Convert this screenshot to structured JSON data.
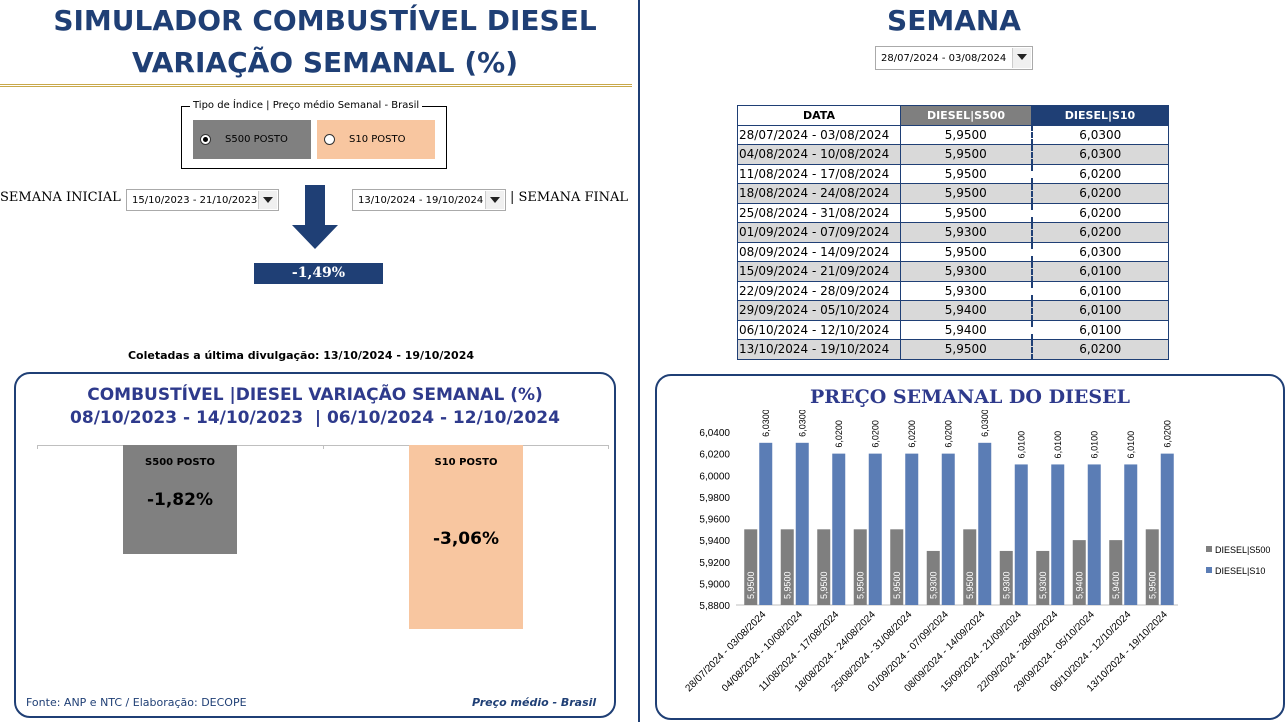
{
  "left": {
    "title_line1": "SIMULADOR COMBUSTÍVEL DIESEL",
    "title_line2": "VARIAÇÃO SEMANAL (%)",
    "index_group_label": "Tipo de Índice | Preço médio Semanal - Brasil",
    "option_s500": "S500 POSTO",
    "option_s10": "S10 POSTO",
    "selected_option": "S500 POSTO",
    "initial_week_label": "SEMANA INICIAL |",
    "initial_week_value": "15/10/2023 - 21/10/2023",
    "final_week_value": "13/10/2024 - 19/10/2024",
    "final_week_label": "| SEMANA FINAL",
    "result": "-1,49%",
    "collected_note": "Coletadas a última divulgação: 13/10/2024 - 19/10/2024",
    "card": {
      "title_line1": "COMBUSTÍVEL |DIESEL VARIAÇÃO SEMANAL (%)",
      "title_line2": "08/10/2023 - 14/10/2023  | 06/10/2024 - 12/10/2024",
      "bars": [
        {
          "name": "S500 POSTO",
          "label": "-1,82%",
          "value": -1.82,
          "color": "#808080"
        },
        {
          "name": "S10 POSTO",
          "label": "-3,06%",
          "value": -3.06,
          "color": "#f8c6a0"
        }
      ]
    },
    "footer_source": "Fonte: ANP e NTC  / Elaboração: DECOPE",
    "footer_note": "Preço médio - Brasil"
  },
  "right": {
    "title": "SEMANA",
    "week_select": "28/07/2024 - 03/08/2024",
    "table": {
      "headers": [
        "DATA",
        "DIESEL|S500",
        "DIESEL|S10"
      ],
      "rows": [
        [
          "28/07/2024 - 03/08/2024",
          "5,9500",
          "6,0300"
        ],
        [
          "04/08/2024 - 10/08/2024",
          "5,9500",
          "6,0300"
        ],
        [
          "11/08/2024 - 17/08/2024",
          "5,9500",
          "6,0200"
        ],
        [
          "18/08/2024 - 24/08/2024",
          "5,9500",
          "6,0200"
        ],
        [
          "25/08/2024 - 31/08/2024",
          "5,9500",
          "6,0200"
        ],
        [
          "01/09/2024 - 07/09/2024",
          "5,9300",
          "6,0200"
        ],
        [
          "08/09/2024 - 14/09/2024",
          "5,9500",
          "6,0300"
        ],
        [
          "15/09/2024 - 21/09/2024",
          "5,9300",
          "6,0100"
        ],
        [
          "22/09/2024 - 28/09/2024",
          "5,9300",
          "6,0100"
        ],
        [
          "29/09/2024 - 05/10/2024",
          "5,9400",
          "6,0100"
        ],
        [
          "06/10/2024 - 12/10/2024",
          "5,9400",
          "6,0100"
        ],
        [
          "13/10/2024 - 19/10/2024",
          "5,9500",
          "6,0200"
        ]
      ]
    }
  },
  "chart_data": {
    "type": "bar",
    "title": "PREÇO SEMANAL DO DIESEL",
    "categories": [
      "28/07/2024 - 03/08/2024",
      "04/08/2024 - 10/08/2024",
      "11/08/2024 - 17/08/2024",
      "18/08/2024 - 24/08/2024",
      "25/08/2024 - 31/08/2024",
      "01/09/2024 - 07/09/2024",
      "08/09/2024 - 14/09/2024",
      "15/09/2024 - 21/09/2024",
      "22/09/2024 - 28/09/2024",
      "29/09/2024 - 05/10/2024",
      "06/10/2024 - 12/10/2024",
      "13/10/2024 - 19/10/2024"
    ],
    "series": [
      {
        "name": "DIESEL|S500",
        "color": "#7f7f7f",
        "values": [
          5.95,
          5.95,
          5.95,
          5.95,
          5.95,
          5.93,
          5.95,
          5.93,
          5.93,
          5.94,
          5.94,
          5.95
        ],
        "labels": [
          "5,9500",
          "5,9500",
          "5,9500",
          "5,9500",
          "5,9500",
          "5,9300",
          "5,9500",
          "5,9300",
          "5,9300",
          "5,9400",
          "5,9400",
          "5,9500"
        ]
      },
      {
        "name": "DIESEL|S10",
        "color": "#5b7db5",
        "values": [
          6.03,
          6.03,
          6.02,
          6.02,
          6.02,
          6.02,
          6.03,
          6.01,
          6.01,
          6.01,
          6.01,
          6.02
        ],
        "labels": [
          "6,0300",
          "6,0300",
          "6,0200",
          "6,0200",
          "6,0200",
          "6,0200",
          "6,0300",
          "6,0100",
          "6,0100",
          "6,0100",
          "6,0100",
          "6,0200"
        ]
      }
    ],
    "ylim": [
      5.88,
      6.04
    ],
    "yticks": [
      "5,8800",
      "5,9000",
      "5,9200",
      "5,9400",
      "5,9600",
      "5,9800",
      "6,0000",
      "6,0200",
      "6,0400"
    ],
    "xlabel": "",
    "ylabel": "",
    "legend": "right"
  }
}
